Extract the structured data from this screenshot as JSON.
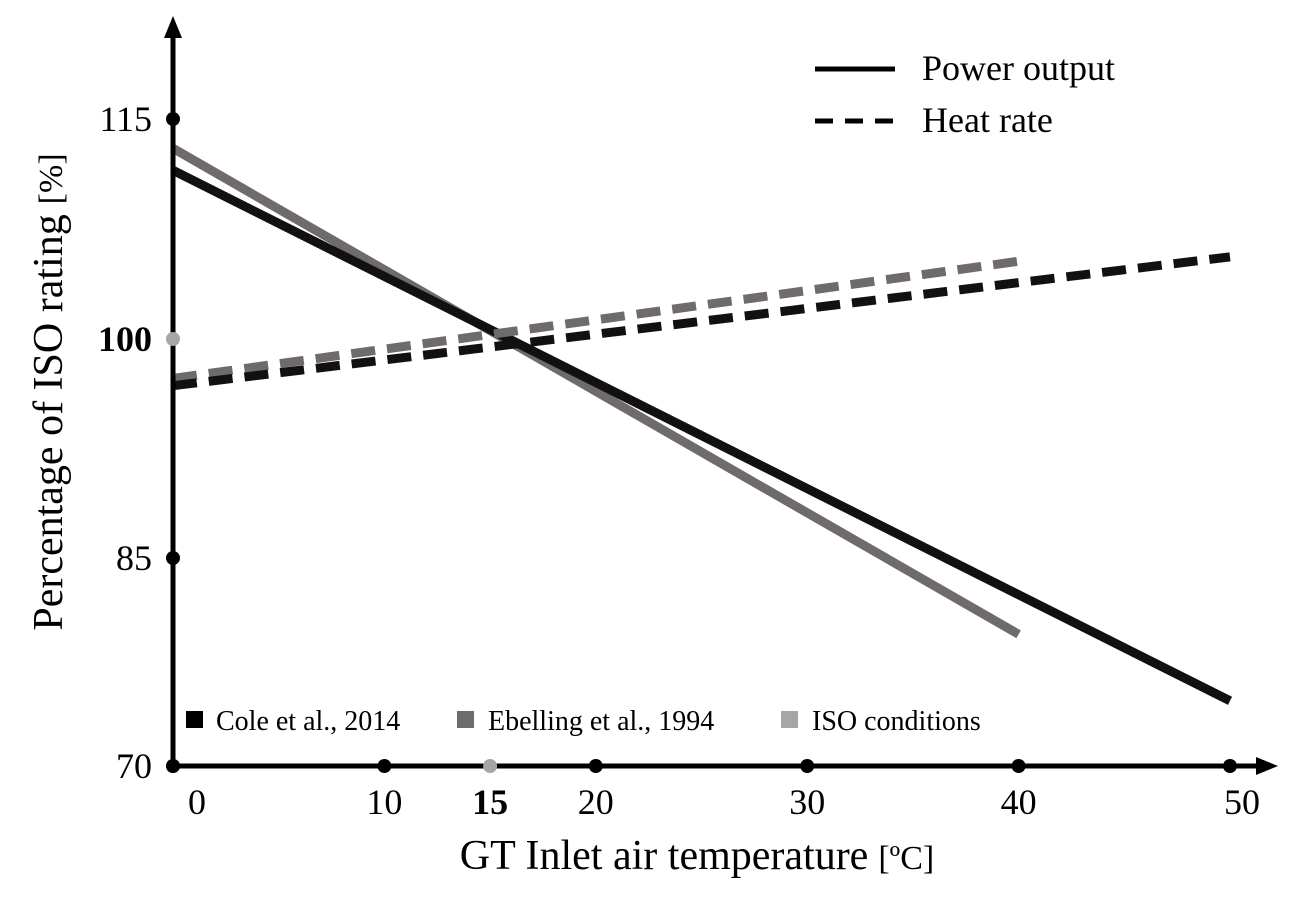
{
  "chart_data": {
    "type": "line",
    "title": "",
    "xlabel": "GT Inlet air temperature",
    "xlabel_unit": "[ºC]",
    "ylabel": "Percentage of ISO rating",
    "ylabel_unit": "[%]",
    "xlim": [
      0,
      50
    ],
    "ylim": [
      70,
      115
    ],
    "grid": false,
    "x_ticks": [
      {
        "value": 0,
        "label": "0",
        "highlight": false
      },
      {
        "value": 10,
        "label": "10",
        "highlight": false
      },
      {
        "value": 15,
        "label": "15",
        "highlight": true
      },
      {
        "value": 20,
        "label": "20",
        "highlight": false
      },
      {
        "value": 30,
        "label": "30",
        "highlight": false
      },
      {
        "value": 40,
        "label": "40",
        "highlight": false
      },
      {
        "value": 50,
        "label": "50",
        "highlight": false
      }
    ],
    "y_ticks": [
      {
        "value": 70,
        "label": "70",
        "highlight": false
      },
      {
        "value": 85,
        "label": "85",
        "highlight": false
      },
      {
        "value": 100,
        "label": "100",
        "highlight": true
      },
      {
        "value": 115,
        "label": "115",
        "highlight": false
      }
    ],
    "series": [
      {
        "name": "Ebelling et al., 1994 - Power output",
        "source": "Ebelling et al., 1994",
        "kind": "Power output",
        "color": "#6f6a6b",
        "dashed": false,
        "x": [
          0,
          40
        ],
        "y": [
          113.0,
          79.5
        ]
      },
      {
        "name": "Cole et al., 2014 - Power output",
        "source": "Cole et al., 2014",
        "kind": "Power output",
        "color": "#111111",
        "dashed": false,
        "x": [
          0,
          50
        ],
        "y": [
          111.5,
          74.7
        ]
      },
      {
        "name": "Ebelling et al., 1994 - Heat rate",
        "source": "Ebelling et al., 1994",
        "kind": "Heat rate",
        "color": "#6f6a6b",
        "dashed": true,
        "x": [
          0,
          40
        ],
        "y": [
          97.3,
          105.3
        ]
      },
      {
        "name": "Cole et al., 2014 - Heat rate",
        "source": "Cole et al., 2014",
        "kind": "Heat rate",
        "color": "#111111",
        "dashed": true,
        "x": [
          0,
          50
        ],
        "y": [
          96.8,
          105.6
        ]
      }
    ],
    "legend_linestyle": {
      "placement": "top-right",
      "entries": [
        {
          "label": "Power output",
          "dashed": false
        },
        {
          "label": "Heat rate",
          "dashed": true
        }
      ]
    },
    "legend_sources": {
      "placement": "bottom-left",
      "entries": [
        {
          "label": "Cole et al., 2014",
          "color": "#000000"
        },
        {
          "label": "Ebelling et al., 1994",
          "color": "#6f6a6b"
        },
        {
          "label": "ISO conditions",
          "color": "#a6a6a6"
        }
      ]
    },
    "highlight_color": "#a6a6a6"
  }
}
